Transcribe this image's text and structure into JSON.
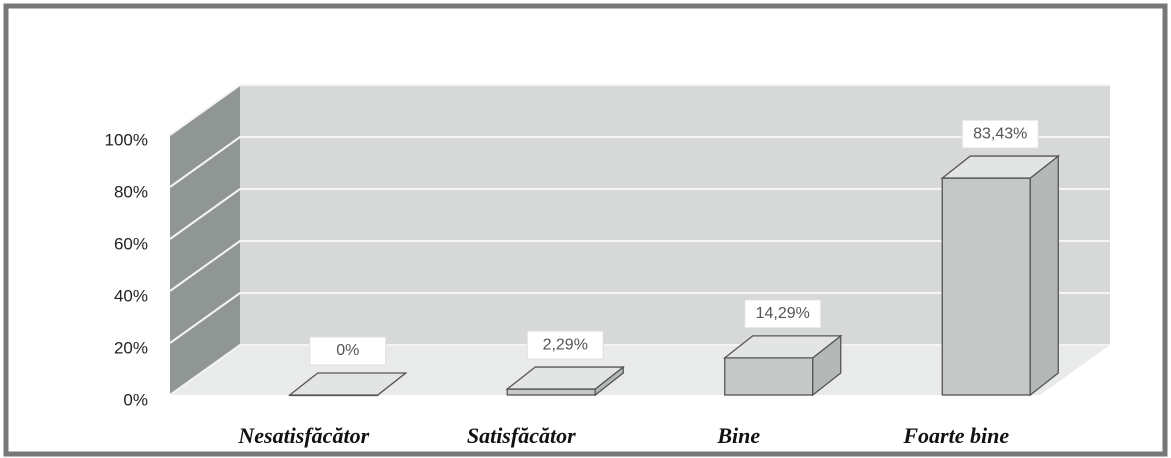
{
  "chart_data": {
    "type": "bar3d",
    "categories": [
      "Nesatisfăcător",
      "Satisfăcător",
      "Bine",
      "Foarte bine"
    ],
    "values": [
      0,
      2.29,
      14.29,
      83.43
    ],
    "value_labels": [
      "0%",
      "2,29%",
      "14,29%",
      "83,43%"
    ],
    "color": "#c4c8c7",
    "ylim": [
      0,
      100
    ],
    "yticks": [
      {
        "value": 0,
        "label": "0%"
      },
      {
        "value": 20,
        "label": "20%"
      },
      {
        "value": 40,
        "label": "40%"
      },
      {
        "value": 60,
        "label": "60%"
      },
      {
        "value": 80,
        "label": "80%"
      },
      {
        "value": 100,
        "label": "100%"
      }
    ],
    "grid": true
  }
}
